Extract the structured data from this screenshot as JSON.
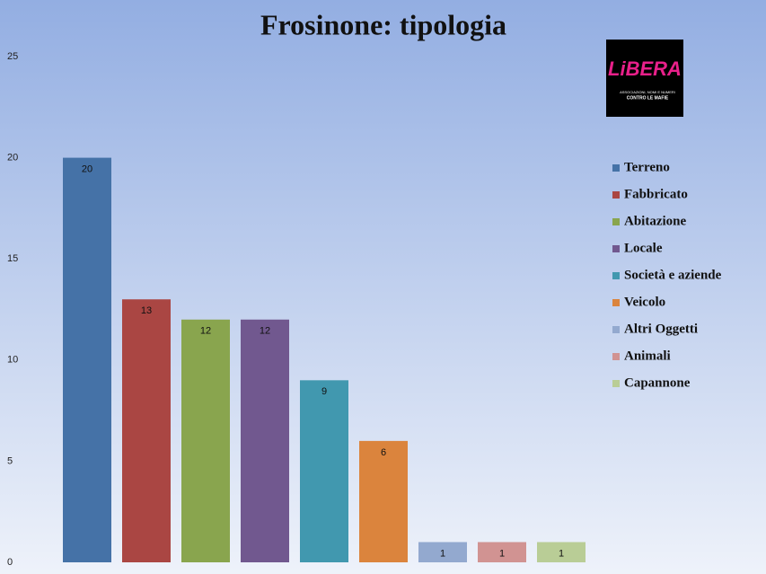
{
  "chart_data": {
    "type": "bar",
    "title": "Frosinone: tipologia",
    "logo": {
      "name": "LiBERA",
      "lines": [
        "ASSOCIAZIONI, NOMI E NUMERI",
        "CONTRO LE MAFIE"
      ]
    },
    "ylim": [
      0,
      25
    ],
    "yticks": [
      0,
      5,
      10,
      15,
      20,
      25
    ],
    "grid": false,
    "legend": "right",
    "series": [
      {
        "name": "Terreno",
        "color": "#4572a7",
        "values": [
          20
        ]
      },
      {
        "name": "Fabbricato",
        "color": "#aa4643",
        "values": [
          13
        ]
      },
      {
        "name": "Abitazione",
        "color": "#89a54e",
        "values": [
          12
        ]
      },
      {
        "name": "Locale",
        "color": "#71588f",
        "values": [
          12
        ]
      },
      {
        "name": "Società e aziende",
        "color": "#4198af",
        "values": [
          9
        ]
      },
      {
        "name": "Veicolo",
        "color": "#db843d",
        "values": [
          6
        ]
      },
      {
        "name": "Altri Oggetti",
        "color": "#93a9cf",
        "values": [
          1
        ]
      },
      {
        "name": "Animali",
        "color": "#d19392",
        "values": [
          1
        ]
      },
      {
        "name": "Capannone",
        "color": "#b9cd96",
        "values": [
          1
        ]
      }
    ]
  }
}
